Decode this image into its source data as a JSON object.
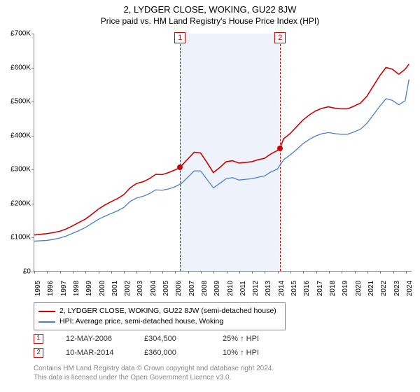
{
  "title": "2, LYDGER CLOSE, WOKING, GU22 8JW",
  "subtitle": "Price paid vs. HM Land Registry's House Price Index (HPI)",
  "chart": {
    "type": "line",
    "xlim": [
      1995,
      2024.5
    ],
    "ylim": [
      0,
      700000
    ],
    "ylabel_prefix": "£",
    "ylabel_suffix": "K",
    "ytick_step": 100000,
    "yticks": [
      0,
      100000,
      200000,
      300000,
      400000,
      500000,
      600000,
      700000
    ],
    "xticks": [
      1995,
      1996,
      1997,
      1998,
      1999,
      2000,
      2001,
      2002,
      2003,
      2004,
      2005,
      2006,
      2007,
      2008,
      2009,
      2010,
      2011,
      2012,
      2013,
      2014,
      2015,
      2016,
      2017,
      2018,
      2019,
      2020,
      2021,
      2022,
      2023,
      2024
    ],
    "background_color": "#ffffff",
    "axis_color": "#888888",
    "label_fontsize": 10,
    "series": [
      {
        "name": "2, LYDGER CLOSE, WOKING, GU22 8JW (semi-detached house)",
        "color": "#cc0000",
        "line_width": 1.6,
        "data": [
          [
            1995,
            106000
          ],
          [
            1995.5,
            108000
          ],
          [
            1996,
            110000
          ],
          [
            1996.5,
            113000
          ],
          [
            1997,
            117000
          ],
          [
            1997.5,
            124000
          ],
          [
            1998,
            133000
          ],
          [
            1998.5,
            143000
          ],
          [
            1999,
            153000
          ],
          [
            1999.5,
            167000
          ],
          [
            2000,
            182000
          ],
          [
            2000.5,
            194000
          ],
          [
            2001,
            204000
          ],
          [
            2001.5,
            213000
          ],
          [
            2002,
            225000
          ],
          [
            2002.5,
            245000
          ],
          [
            2003,
            258000
          ],
          [
            2003.5,
            263000
          ],
          [
            2004,
            272000
          ],
          [
            2004.5,
            285000
          ],
          [
            2005,
            284000
          ],
          [
            2005.5,
            290000
          ],
          [
            2006,
            298000
          ],
          [
            2006.37,
            304500
          ],
          [
            2007,
            330000
          ],
          [
            2007.5,
            350000
          ],
          [
            2008,
            348000
          ],
          [
            2008.5,
            320000
          ],
          [
            2009,
            290000
          ],
          [
            2009.5,
            305000
          ],
          [
            2010,
            322000
          ],
          [
            2010.5,
            325000
          ],
          [
            2011,
            318000
          ],
          [
            2011.5,
            320000
          ],
          [
            2012,
            322000
          ],
          [
            2012.5,
            328000
          ],
          [
            2013,
            332000
          ],
          [
            2013.5,
            345000
          ],
          [
            2014,
            355000
          ],
          [
            2014.19,
            360000
          ],
          [
            2014.5,
            390000
          ],
          [
            2015,
            405000
          ],
          [
            2015.5,
            425000
          ],
          [
            2016,
            445000
          ],
          [
            2016.5,
            460000
          ],
          [
            2017,
            472000
          ],
          [
            2017.5,
            480000
          ],
          [
            2018,
            484000
          ],
          [
            2018.5,
            480000
          ],
          [
            2019,
            478000
          ],
          [
            2019.5,
            478000
          ],
          [
            2020,
            486000
          ],
          [
            2020.5,
            495000
          ],
          [
            2021,
            515000
          ],
          [
            2021.5,
            545000
          ],
          [
            2022,
            575000
          ],
          [
            2022.5,
            600000
          ],
          [
            2023,
            595000
          ],
          [
            2023.5,
            580000
          ],
          [
            2024,
            595000
          ],
          [
            2024.3,
            610000
          ]
        ]
      },
      {
        "name": "HPI: Average price, semi-detached house, Woking",
        "color": "#4a7fc9",
        "line_width": 1.3,
        "data": [
          [
            1995,
            88000
          ],
          [
            1995.5,
            89000
          ],
          [
            1996,
            90000
          ],
          [
            1996.5,
            93000
          ],
          [
            1997,
            97000
          ],
          [
            1997.5,
            103000
          ],
          [
            1998,
            111000
          ],
          [
            1998.5,
            119000
          ],
          [
            1999,
            128000
          ],
          [
            1999.5,
            140000
          ],
          [
            2000,
            152000
          ],
          [
            2000.5,
            161000
          ],
          [
            2001,
            169000
          ],
          [
            2001.5,
            177000
          ],
          [
            2002,
            187000
          ],
          [
            2002.5,
            205000
          ],
          [
            2003,
            215000
          ],
          [
            2003.5,
            220000
          ],
          [
            2004,
            228000
          ],
          [
            2004.5,
            239000
          ],
          [
            2005,
            238000
          ],
          [
            2005.5,
            242000
          ],
          [
            2006,
            248000
          ],
          [
            2006.5,
            258000
          ],
          [
            2007,
            276000
          ],
          [
            2007.5,
            295000
          ],
          [
            2008,
            295000
          ],
          [
            2008.5,
            270000
          ],
          [
            2009,
            245000
          ],
          [
            2009.5,
            258000
          ],
          [
            2010,
            272000
          ],
          [
            2010.5,
            275000
          ],
          [
            2011,
            268000
          ],
          [
            2011.5,
            270000
          ],
          [
            2012,
            272000
          ],
          [
            2012.5,
            276000
          ],
          [
            2013,
            280000
          ],
          [
            2013.5,
            292000
          ],
          [
            2014,
            300000
          ],
          [
            2014.5,
            328000
          ],
          [
            2015,
            342000
          ],
          [
            2015.5,
            358000
          ],
          [
            2016,
            375000
          ],
          [
            2016.5,
            388000
          ],
          [
            2017,
            398000
          ],
          [
            2017.5,
            405000
          ],
          [
            2018,
            408000
          ],
          [
            2018.5,
            405000
          ],
          [
            2019,
            403000
          ],
          [
            2019.5,
            403000
          ],
          [
            2020,
            410000
          ],
          [
            2020.5,
            418000
          ],
          [
            2021,
            435000
          ],
          [
            2021.5,
            460000
          ],
          [
            2022,
            485000
          ],
          [
            2022.5,
            508000
          ],
          [
            2023,
            503000
          ],
          [
            2023.5,
            490000
          ],
          [
            2024,
            502000
          ],
          [
            2024.3,
            565000
          ]
        ]
      }
    ],
    "shaded_regions": [
      {
        "from": 2006.37,
        "to": 2014.19,
        "color": "#eef2fa"
      }
    ],
    "event_markers": [
      {
        "label": "1",
        "x": 2006.37,
        "y": 304500,
        "color": "#cc0000",
        "dash_color": "#cc0000"
      },
      {
        "label": "2",
        "x": 2014.19,
        "y": 360000,
        "color": "#cc0000",
        "dash_color": "#cc0000"
      }
    ]
  },
  "legend": {
    "items": [
      {
        "swatch_color": "#cc0000",
        "text": "2, LYDGER CLOSE, WOKING, GU22 8JW (semi-detached house)"
      },
      {
        "swatch_color": "#4a7fc9",
        "text": "HPI: Average price, semi-detached house, Woking"
      }
    ]
  },
  "events_table": {
    "rows": [
      {
        "marker": "1",
        "marker_color": "#cc0000",
        "date": "12-MAY-2006",
        "price": "£304,500",
        "delta": "25% ↑ HPI"
      },
      {
        "marker": "2",
        "marker_color": "#cc0000",
        "date": "10-MAR-2014",
        "price": "£360,000",
        "delta": "10% ↑ HPI"
      }
    ]
  },
  "footer": {
    "line1": "Contains HM Land Registry data © Crown copyright and database right 2024.",
    "line2": "This data is licensed under the Open Government Licence v3.0."
  }
}
